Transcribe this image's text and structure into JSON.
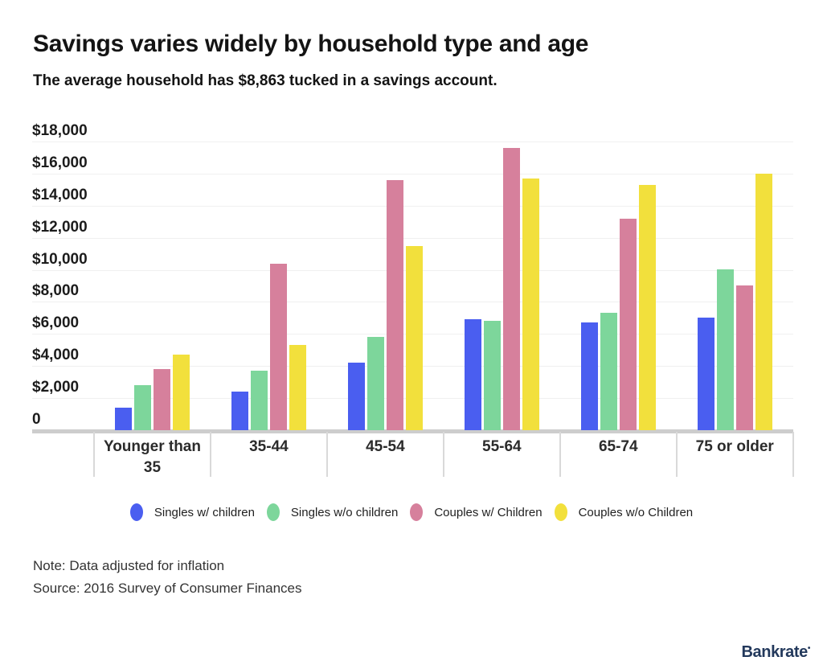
{
  "header": {
    "title": "Savings varies widely by household type and age",
    "subtitle": "The average household has $8,863 tucked in a savings account."
  },
  "chart_data": {
    "type": "bar",
    "title": "Savings varies widely by household type and age",
    "subtitle": "The average household has $8,863 tucked in a savings account.",
    "units": "USD",
    "categories": [
      "Younger than 35",
      "35-44",
      "45-54",
      "55-64",
      "65-74",
      "75 or older"
    ],
    "series": [
      {
        "name": "Singles w/ children",
        "color": "#4a5ef0",
        "values": [
          1400,
          2400,
          4200,
          6900,
          6700,
          7000
        ]
      },
      {
        "name": "Singles w/o children",
        "color": "#7dd69b",
        "values": [
          2800,
          3700,
          5800,
          6800,
          7300,
          10000
        ]
      },
      {
        "name": "Couples w/ Children",
        "color": "#d6809c",
        "values": [
          3800,
          10400,
          15600,
          17600,
          13200,
          9000
        ]
      },
      {
        "name": "Couples w/o Children",
        "color": "#f2e03c",
        "values": [
          4700,
          5300,
          11500,
          15700,
          15300,
          16000
        ]
      }
    ],
    "y_ticks": [
      {
        "label": "$18,000",
        "value": 18000
      },
      {
        "label": "$16,000",
        "value": 16000
      },
      {
        "label": "$14,000",
        "value": 14000
      },
      {
        "label": "$12,000",
        "value": 12000
      },
      {
        "label": "$10,000",
        "value": 10000
      },
      {
        "label": "$8,000",
        "value": 8000
      },
      {
        "label": "$6,000",
        "value": 6000
      },
      {
        "label": "$4,000",
        "value": 4000
      },
      {
        "label": "$2,000",
        "value": 2000
      },
      {
        "label": "0",
        "value": 0
      }
    ],
    "ylim": [
      0,
      18000
    ],
    "grid": "horizontal",
    "legend_position": "bottom"
  },
  "footnotes": {
    "note": "Note: Data adjusted for inflation",
    "source": "Source: 2016 Survey of Consumer Finances"
  },
  "branding": {
    "logo_text": "Bankrate"
  }
}
